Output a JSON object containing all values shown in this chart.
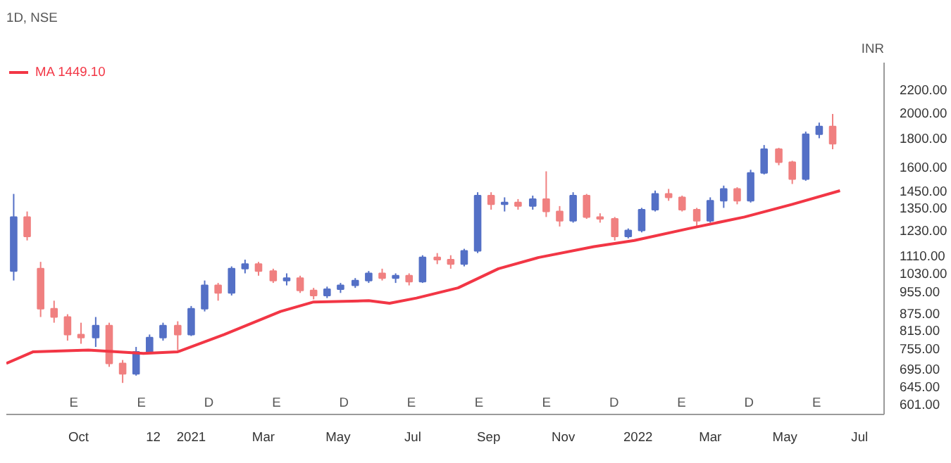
{
  "chart_data": {
    "type": "candlestick",
    "title": "1D, NSE",
    "ylabel": "INR",
    "x": [
      "2020-08-09",
      "2020-08-20",
      "2020-08-31",
      "2020-09-11",
      "2020-09-22",
      "2020-10-03",
      "2020-10-15",
      "2020-10-26",
      "2020-11-06",
      "2020-11-17",
      "2020-11-28",
      "2020-12-09",
      "2020-12-21",
      "2021-01-01",
      "2021-01-12",
      "2021-01-23",
      "2021-02-03",
      "2021-02-14",
      "2021-02-25",
      "2021-03-09",
      "2021-03-20",
      "2021-03-31",
      "2021-04-11",
      "2021-04-22",
      "2021-05-03",
      "2021-05-15",
      "2021-05-26",
      "2021-06-06",
      "2021-06-17",
      "2021-06-28",
      "2021-07-09",
      "2021-07-21",
      "2021-08-01",
      "2021-08-12",
      "2021-08-23",
      "2021-09-03",
      "2021-09-14",
      "2021-09-25",
      "2021-10-07",
      "2021-10-18",
      "2021-10-29",
      "2021-11-09",
      "2021-11-20",
      "2021-12-01",
      "2021-12-13",
      "2021-12-24",
      "2022-01-04",
      "2022-01-15",
      "2022-01-26",
      "2022-02-06",
      "2022-02-18",
      "2022-03-01",
      "2022-03-12",
      "2022-03-23",
      "2022-04-03",
      "2022-04-14",
      "2022-04-26",
      "2022-05-07",
      "2022-05-18",
      "2022-05-29",
      "2022-06-09"
    ],
    "ohlc": [
      [
        1040,
        1430,
        1000,
        1300
      ],
      [
        1300,
        1330,
        1180,
        1200
      ],
      [
        1050,
        1080,
        860,
        890
      ],
      [
        890,
        920,
        840,
        860
      ],
      [
        860,
        870,
        780,
        800
      ],
      [
        800,
        840,
        770,
        790
      ],
      [
        790,
        860,
        760,
        830
      ],
      [
        830,
        840,
        700,
        710
      ],
      [
        710,
        720,
        655,
        680
      ],
      [
        680,
        760,
        675,
        745
      ],
      [
        745,
        800,
        740,
        790
      ],
      [
        790,
        840,
        780,
        830
      ],
      [
        830,
        845,
        750,
        800
      ],
      [
        800,
        900,
        795,
        890
      ],
      [
        890,
        1000,
        880,
        980
      ],
      [
        980,
        990,
        920,
        950
      ],
      [
        950,
        1060,
        940,
        1050
      ],
      [
        1050,
        1090,
        1030,
        1070
      ],
      [
        1070,
        1080,
        1020,
        1040
      ],
      [
        1040,
        1050,
        990,
        1000
      ],
      [
        1000,
        1030,
        980,
        1010
      ],
      [
        1010,
        1020,
        950,
        960
      ],
      [
        960,
        970,
        925,
        940
      ],
      [
        940,
        975,
        930,
        965
      ],
      [
        965,
        990,
        950,
        980
      ],
      [
        980,
        1010,
        970,
        1000
      ],
      [
        1000,
        1040,
        990,
        1030
      ],
      [
        1030,
        1050,
        1000,
        1010
      ],
      [
        1010,
        1030,
        990,
        1020
      ],
      [
        1020,
        1030,
        980,
        995
      ],
      [
        995,
        1110,
        990,
        1100
      ],
      [
        1100,
        1120,
        1070,
        1090
      ],
      [
        1090,
        1110,
        1050,
        1070
      ],
      [
        1070,
        1140,
        1060,
        1130
      ],
      [
        1130,
        1440,
        1120,
        1420
      ],
      [
        1420,
        1440,
        1340,
        1370
      ],
      [
        1370,
        1410,
        1330,
        1380
      ],
      [
        1380,
        1400,
        1340,
        1360
      ],
      [
        1360,
        1420,
        1340,
        1400
      ],
      [
        1400,
        1570,
        1300,
        1330
      ],
      [
        1330,
        1360,
        1250,
        1280
      ],
      [
        1280,
        1440,
        1270,
        1420
      ],
      [
        1420,
        1430,
        1290,
        1300
      ],
      [
        1300,
        1320,
        1270,
        1290
      ],
      [
        1290,
        1300,
        1180,
        1200
      ],
      [
        1200,
        1240,
        1190,
        1230
      ],
      [
        1230,
        1350,
        1220,
        1340
      ],
      [
        1340,
        1450,
        1330,
        1430
      ],
      [
        1430,
        1460,
        1390,
        1410
      ],
      [
        1410,
        1420,
        1330,
        1340
      ],
      [
        1340,
        1350,
        1250,
        1280
      ],
      [
        1280,
        1410,
        1270,
        1390
      ],
      [
        1390,
        1480,
        1350,
        1460
      ],
      [
        1460,
        1470,
        1370,
        1390
      ],
      [
        1390,
        1580,
        1380,
        1560
      ],
      [
        1560,
        1750,
        1550,
        1720
      ],
      [
        1720,
        1730,
        1610,
        1630
      ],
      [
        1630,
        1640,
        1490,
        1520
      ],
      [
        1520,
        1850,
        1510,
        1830
      ],
      [
        1830,
        1920,
        1800,
        1890
      ],
      [
        1890,
        1990,
        1720,
        1760
      ]
    ],
    "colors": [
      "#5470c6",
      "#f08080",
      "#f08080",
      "#f08080",
      "#f08080",
      "#f08080",
      "#5470c6",
      "#f08080",
      "#f08080",
      "#5470c6",
      "#5470c6",
      "#5470c6",
      "#f08080",
      "#5470c6",
      "#5470c6",
      "#f08080",
      "#5470c6",
      "#5470c6",
      "#f08080",
      "#f08080",
      "#5470c6",
      "#f08080",
      "#f08080",
      "#5470c6",
      "#5470c6",
      "#5470c6",
      "#5470c6",
      "#f08080",
      "#5470c6",
      "#f08080",
      "#5470c6",
      "#f08080",
      "#f08080",
      "#5470c6",
      "#5470c6",
      "#f08080",
      "#5470c6",
      "#f08080",
      "#5470c6",
      "#f08080",
      "#f08080",
      "#5470c6",
      "#f08080",
      "#f08080",
      "#f08080",
      "#5470c6",
      "#5470c6",
      "#5470c6",
      "#f08080",
      "#f08080",
      "#f08080",
      "#5470c6",
      "#5470c6",
      "#f08080",
      "#5470c6",
      "#5470c6",
      "#f08080",
      "#f08080",
      "#5470c6",
      "#5470c6",
      "#f08080"
    ],
    "series": [
      {
        "type": "line",
        "name": "MA 1449.10",
        "color": "#f23645",
        "x": [
          "2020-08-03",
          "2020-08-25",
          "2020-10-09",
          "2020-11-23",
          "2020-12-21",
          "2021-01-28",
          "2021-03-15",
          "2021-04-11",
          "2021-05-26",
          "2021-06-12",
          "2021-07-04",
          "2021-08-07",
          "2021-09-09",
          "2021-10-12",
          "2021-11-26",
          "2021-12-29",
          "2022-02-12",
          "2022-03-29",
          "2022-05-07",
          "2022-06-15"
        ],
        "values": [
          710,
          745,
          750,
          740,
          745,
          800,
          880,
          915,
          920,
          910,
          930,
          970,
          1050,
          1100,
          1150,
          1180,
          1240,
          1300,
          1370,
          1449.1
        ]
      }
    ],
    "annotations": [
      "E",
      "E",
      "D",
      "E",
      "D",
      "E",
      "E",
      "E",
      "D",
      "E",
      "D",
      "E"
    ],
    "log": "y",
    "legend": "top left",
    "xlim": [
      "2020-08-03",
      "2022-07-21"
    ],
    "xticks": [
      {
        "value": "2020-10-01",
        "label": "Oct"
      },
      {
        "value": "2020-12-01",
        "label": "12"
      },
      {
        "value": "2021-01-01",
        "label": "2021"
      },
      {
        "value": "2021-03-01",
        "label": "Mar"
      },
      {
        "value": "2021-05-01",
        "label": "May"
      },
      {
        "value": "2021-07-01",
        "label": "Jul"
      },
      {
        "value": "2021-09-01",
        "label": "Sep"
      },
      {
        "value": "2021-11-01",
        "label": "Nov"
      },
      {
        "value": "2022-01-01",
        "label": "2022"
      },
      {
        "value": "2022-03-01",
        "label": "Mar"
      },
      {
        "value": "2022-05-01",
        "label": "May"
      },
      {
        "value": "2022-07-01",
        "label": "Jul"
      }
    ],
    "ylim": [
      575,
      2460
    ],
    "yticks": [
      {
        "value": 601,
        "label": "601.00"
      },
      {
        "value": 645,
        "label": "645.00"
      },
      {
        "value": 695,
        "label": "695.00"
      },
      {
        "value": 755,
        "label": "755.00"
      },
      {
        "value": 815,
        "label": "815.00"
      },
      {
        "value": 875,
        "label": "875.00"
      },
      {
        "value": 955,
        "label": "955.00"
      },
      {
        "value": 1030,
        "label": "1030.00"
      },
      {
        "value": 1110,
        "label": "1110.00"
      },
      {
        "value": 1230,
        "label": "1230.00"
      },
      {
        "value": 1350,
        "label": "1350.00"
      },
      {
        "value": 1450,
        "label": "1450.00"
      },
      {
        "value": 1600,
        "label": "1600.00"
      },
      {
        "value": 1800,
        "label": "1800.00"
      },
      {
        "value": 2000,
        "label": "2000.00"
      },
      {
        "value": 2200,
        "label": "2200.00"
      }
    ]
  }
}
